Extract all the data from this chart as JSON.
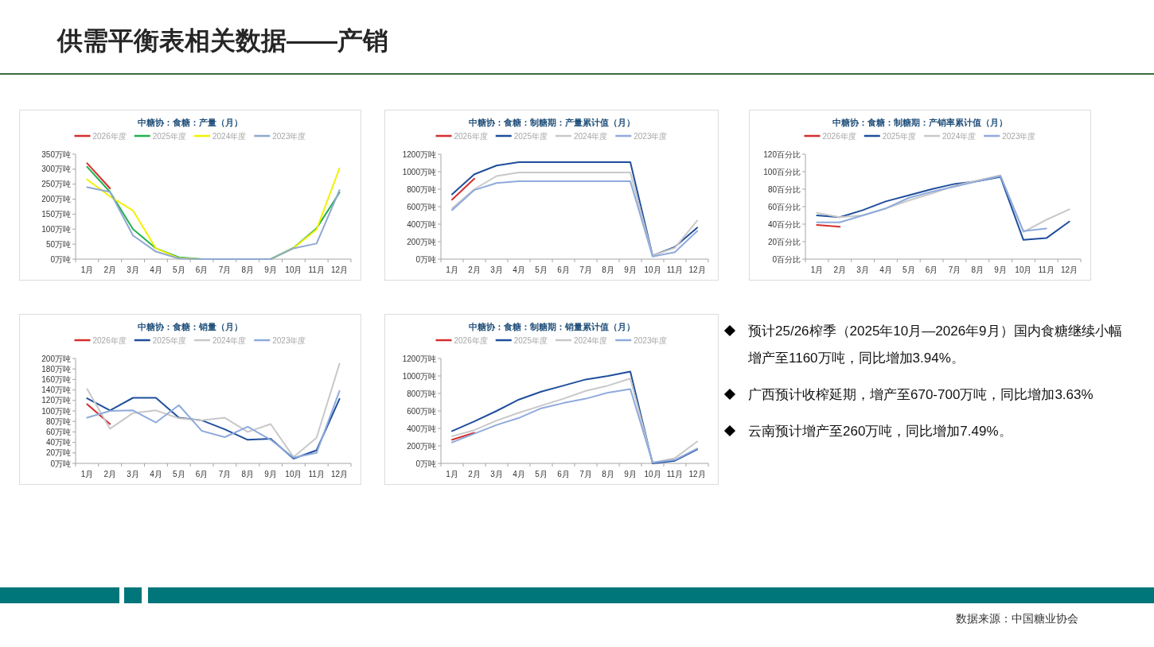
{
  "chart_data": [
    {
      "type": "line",
      "title": "中糖协：食糖：产量（月）",
      "categories": [
        "1月",
        "2月",
        "3月",
        "4月",
        "5月",
        "6月",
        "7月",
        "8月",
        "9月",
        "10月",
        "11月",
        "12月"
      ],
      "ylim": [
        0,
        350
      ],
      "yticks": [
        {
          "value": 0,
          "label": "0万吨"
        },
        {
          "value": 50,
          "label": "50万吨"
        },
        {
          "value": 100,
          "label": "100万吨"
        },
        {
          "value": 150,
          "label": "150万吨"
        },
        {
          "value": 200,
          "label": "200万吨"
        },
        {
          "value": 250,
          "label": "250万吨"
        },
        {
          "value": 300,
          "label": "300万吨"
        },
        {
          "value": 350,
          "label": "350万吨"
        }
      ],
      "legend": "top",
      "series": [
        {
          "name": "2026年度",
          "color": "#d62d2d",
          "values": [
            320,
            236,
            null,
            null,
            null,
            null,
            null,
            null,
            null,
            null,
            null,
            null
          ]
        },
        {
          "name": "2025年度",
          "color": "#22b14c",
          "values": [
            308,
            224,
            100,
            36,
            6,
            0,
            0,
            0,
            0,
            38,
            103,
            222
          ]
        },
        {
          "name": "2024年度",
          "color": "#f2f200",
          "values": [
            266,
            209,
            162,
            36,
            3,
            0,
            0,
            0,
            0,
            37,
            99,
            303
          ]
        },
        {
          "name": "2023年度",
          "color": "#8fa8d0",
          "values": [
            240,
            224,
            79,
            25,
            2,
            0,
            0,
            0,
            0,
            36,
            52,
            230
          ]
        }
      ]
    },
    {
      "type": "line",
      "title": "中糖协：食糖：制糖期：产量累计值（月）",
      "categories": [
        "1月",
        "2月",
        "3月",
        "4月",
        "5月",
        "6月",
        "7月",
        "8月",
        "9月",
        "10月",
        "11月",
        "12月"
      ],
      "ylim": [
        0,
        1200
      ],
      "yticks": [
        {
          "value": 0,
          "label": "0万吨"
        },
        {
          "value": 200,
          "label": "200万吨"
        },
        {
          "value": 400,
          "label": "400万吨"
        },
        {
          "value": 600,
          "label": "600万吨"
        },
        {
          "value": 800,
          "label": "800万吨"
        },
        {
          "value": 1000,
          "label": "1000万吨"
        },
        {
          "value": 1200,
          "label": "1200万吨"
        }
      ],
      "legend": "top",
      "series": [
        {
          "name": "2026年度",
          "color": "#d62d2d",
          "values": [
            680,
            920,
            null,
            null,
            null,
            null,
            null,
            null,
            null,
            null,
            null,
            null
          ]
        },
        {
          "name": "2025年度",
          "color": "#1f4e9c",
          "values": [
            740,
            970,
            1070,
            1110,
            1110,
            1110,
            1110,
            1110,
            1110,
            40,
            140,
            360
          ]
        },
        {
          "name": "2024年度",
          "color": "#c8c8c8",
          "values": [
            580,
            800,
            950,
            990,
            990,
            990,
            990,
            990,
            990,
            40,
            130,
            440
          ]
        },
        {
          "name": "2023年度",
          "color": "#8faadc",
          "values": [
            560,
            790,
            870,
            890,
            890,
            890,
            890,
            890,
            890,
            30,
            80,
            320
          ]
        }
      ]
    },
    {
      "type": "line",
      "title": "中糖协：食糖：制糖期：产销率累计值（月）",
      "categories": [
        "1月",
        "2月",
        "3月",
        "4月",
        "5月",
        "6月",
        "7月",
        "8月",
        "9月",
        "10月",
        "11月",
        "12月"
      ],
      "ylim": [
        0,
        120
      ],
      "yticks": [
        {
          "value": 0,
          "label": "0百分比"
        },
        {
          "value": 20,
          "label": "20百分比"
        },
        {
          "value": 40,
          "label": "40百分比"
        },
        {
          "value": 60,
          "label": "60百分比"
        },
        {
          "value": 80,
          "label": "80百分比"
        },
        {
          "value": 100,
          "label": "100百分比"
        },
        {
          "value": 120,
          "label": "120百分比"
        }
      ],
      "legend": "top",
      "series": [
        {
          "name": "2026年度",
          "color": "#d62d2d",
          "values": [
            39,
            37,
            null,
            null,
            null,
            null,
            null,
            null,
            null,
            null,
            null,
            null
          ]
        },
        {
          "name": "2025年度",
          "color": "#1f4e9c",
          "values": [
            50,
            48,
            56,
            66,
            73,
            80,
            86,
            89,
            94,
            22,
            24,
            43
          ]
        },
        {
          "name": "2024年度",
          "color": "#c8c8c8",
          "values": [
            53,
            48,
            50,
            58,
            67,
            75,
            84,
            90,
            96,
            31,
            45,
            57
          ]
        },
        {
          "name": "2023年度",
          "color": "#8faadc",
          "values": [
            42,
            42,
            50,
            58,
            70,
            77,
            83,
            89,
            95,
            32,
            35,
            null
          ]
        }
      ]
    },
    {
      "type": "line",
      "title": "中糖协：食糖：销量（月）",
      "categories": [
        "1月",
        "2月",
        "3月",
        "4月",
        "5月",
        "6月",
        "7月",
        "8月",
        "9月",
        "10月",
        "11月",
        "12月"
      ],
      "ylim": [
        0,
        200
      ],
      "yticks": [
        {
          "value": 0,
          "label": "0万吨"
        },
        {
          "value": 20,
          "label": "20万吨"
        },
        {
          "value": 40,
          "label": "40万吨"
        },
        {
          "value": 60,
          "label": "60万吨"
        },
        {
          "value": 80,
          "label": "80万吨"
        },
        {
          "value": 100,
          "label": "100万吨"
        },
        {
          "value": 120,
          "label": "120万吨"
        },
        {
          "value": 140,
          "label": "140万吨"
        },
        {
          "value": 160,
          "label": "160万吨"
        },
        {
          "value": 180,
          "label": "180万吨"
        },
        {
          "value": 200,
          "label": "200万吨"
        }
      ],
      "legend": "top",
      "series": [
        {
          "name": "2026年度",
          "color": "#d62d2d",
          "values": [
            113,
            75,
            null,
            null,
            null,
            null,
            null,
            null,
            null,
            null,
            null,
            null
          ]
        },
        {
          "name": "2025年度",
          "color": "#1f4e9c",
          "values": [
            124,
            101,
            125,
            125,
            87,
            82,
            65,
            45,
            47,
            9,
            25,
            123
          ]
        },
        {
          "name": "2024年度",
          "color": "#c8c8c8",
          "values": [
            142,
            66,
            96,
            101,
            86,
            82,
            87,
            60,
            75,
            12,
            49,
            190
          ]
        },
        {
          "name": "2023年度",
          "color": "#8faadc",
          "values": [
            87,
            100,
            101,
            78,
            111,
            62,
            50,
            70,
            45,
            11,
            20,
            138
          ]
        }
      ]
    },
    {
      "type": "line",
      "title": "中糖协：食糖：制糖期：销量累计值（月）",
      "categories": [
        "1月",
        "2月",
        "3月",
        "4月",
        "5月",
        "6月",
        "7月",
        "8月",
        "9月",
        "10月",
        "11月",
        "12月"
      ],
      "ylim": [
        0,
        1200
      ],
      "yticks": [
        {
          "value": 0,
          "label": "0万吨"
        },
        {
          "value": 200,
          "label": "200万吨"
        },
        {
          "value": 400,
          "label": "400万吨"
        },
        {
          "value": 600,
          "label": "600万吨"
        },
        {
          "value": 800,
          "label": "800万吨"
        },
        {
          "value": 1000,
          "label": "1000万吨"
        },
        {
          "value": 1200,
          "label": "1200万吨"
        }
      ],
      "legend": "top",
      "series": [
        {
          "name": "2026年度",
          "color": "#d62d2d",
          "values": [
            270,
            350,
            null,
            null,
            null,
            null,
            null,
            null,
            null,
            null,
            null,
            null
          ]
        },
        {
          "name": "2025年度",
          "color": "#1f4e9c",
          "values": [
            370,
            480,
            600,
            730,
            820,
            890,
            960,
            1000,
            1050,
            0,
            30,
            160
          ]
        },
        {
          "name": "2024年度",
          "color": "#c8c8c8",
          "values": [
            310,
            380,
            490,
            580,
            660,
            740,
            830,
            890,
            970,
            10,
            60,
            250
          ]
        },
        {
          "name": "2023年度",
          "color": "#8faadc",
          "values": [
            240,
            340,
            440,
            520,
            630,
            690,
            740,
            810,
            850,
            10,
            40,
            170
          ]
        }
      ]
    },
    {
      "type": "other",
      "title": "供需平衡表相关数据——产销",
      "annotations": [
        "预计25/26榨季（2025年10月—2026年9月）国内食糖继续小幅增产至1160万吨，同比增加3.94%。",
        "广西预计收榨延期，增产至670-700万吨，同比增加3.63%",
        "云南预计增产至260万吨，同比增加7.49%。",
        "数据来源：中国糖业协会"
      ]
    }
  ]
}
